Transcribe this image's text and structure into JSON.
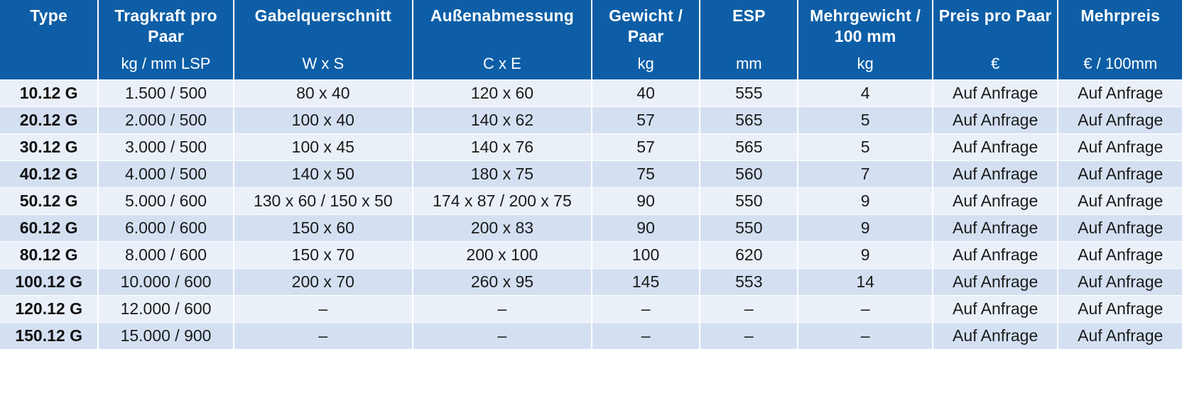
{
  "table": {
    "columns": [
      {
        "title": "Type",
        "unit": ""
      },
      {
        "title": "Tragkraft pro Paar",
        "unit": "kg / mm LSP"
      },
      {
        "title": "Gabelquerschnitt",
        "unit": "W x S"
      },
      {
        "title": "Außenabmessung",
        "unit": "C x E"
      },
      {
        "title": "Gewicht / Paar",
        "unit": "kg"
      },
      {
        "title": "ESP",
        "unit": "mm"
      },
      {
        "title": "Mehrgewicht / 100 mm",
        "unit": "kg"
      },
      {
        "title": "Preis pro Paar",
        "unit": "€"
      },
      {
        "title": "Mehrpreis",
        "unit": "€ / 100mm"
      }
    ],
    "rows": [
      [
        "10.12 G",
        "1.500 / 500",
        "80 x 40",
        "120 x 60",
        "40",
        "555",
        "4",
        "Auf Anfrage",
        "Auf Anfrage"
      ],
      [
        "20.12 G",
        "2.000 / 500",
        "100 x 40",
        "140 x 62",
        "57",
        "565",
        "5",
        "Auf Anfrage",
        "Auf Anfrage"
      ],
      [
        "30.12 G",
        "3.000 / 500",
        "100 x 45",
        "140 x 76",
        "57",
        "565",
        "5",
        "Auf Anfrage",
        "Auf Anfrage"
      ],
      [
        "40.12 G",
        "4.000 / 500",
        "140 x 50",
        "180 x 75",
        "75",
        "560",
        "7",
        "Auf Anfrage",
        "Auf Anfrage"
      ],
      [
        "50.12 G",
        "5.000 / 600",
        "130 x 60 / 150 x 50",
        "174 x 87 / 200 x 75",
        "90",
        "550",
        "9",
        "Auf Anfrage",
        "Auf Anfrage"
      ],
      [
        "60.12 G",
        "6.000 / 600",
        "150 x 60",
        "200 x 83",
        "90",
        "550",
        "9",
        "Auf Anfrage",
        "Auf Anfrage"
      ],
      [
        "80.12 G",
        "8.000 / 600",
        "150 x 70",
        "200 x 100",
        "100",
        "620",
        "9",
        "Auf Anfrage",
        "Auf Anfrage"
      ],
      [
        "100.12 G",
        "10.000 / 600",
        "200 x 70",
        "260 x 95",
        "145",
        "553",
        "14",
        "Auf Anfrage",
        "Auf Anfrage"
      ],
      [
        "120.12 G",
        "12.000 / 600",
        "–",
        "–",
        "–",
        "–",
        "–",
        "Auf Anfrage",
        "Auf Anfrage"
      ],
      [
        "150.12 G",
        "15.000 / 900",
        "–",
        "–",
        "–",
        "–",
        "–",
        "Auf Anfrage",
        "Auf Anfrage"
      ]
    ]
  },
  "colors": {
    "header_bg": "#0d5ea6",
    "header_text": "#ffffff",
    "row_light": "#eaf0f8",
    "row_dark": "#d4e0f2"
  }
}
